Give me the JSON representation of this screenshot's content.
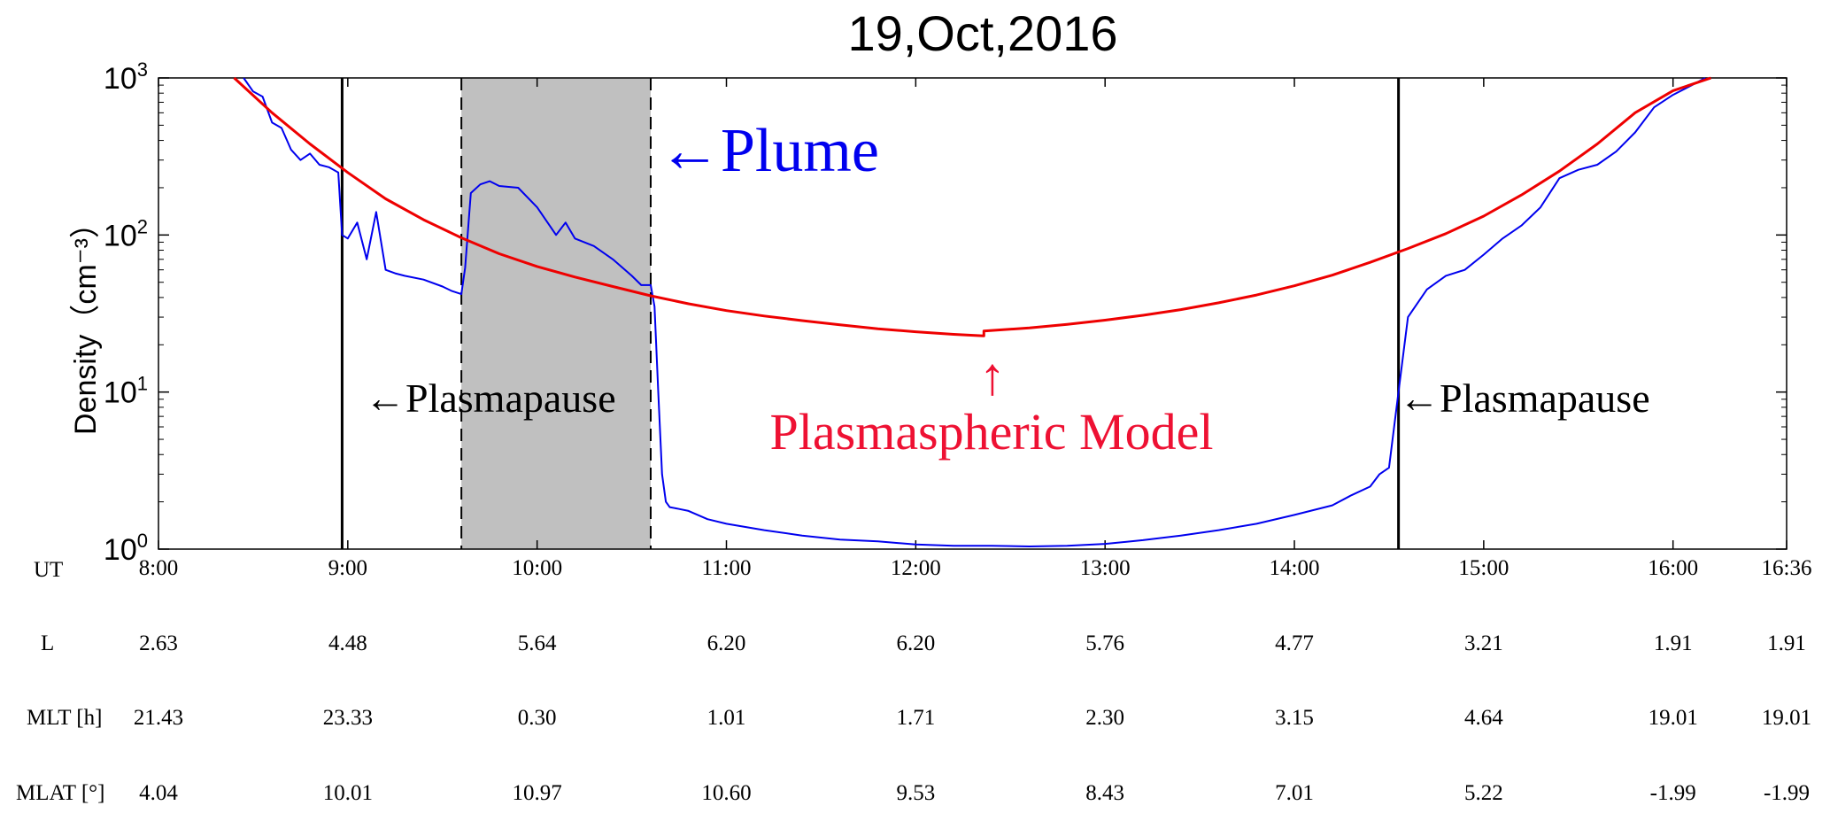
{
  "chart_data": {
    "type": "line",
    "title": "19,Oct,2016",
    "ylabel": "Density（cm⁻³）",
    "y_scale": "log",
    "ylim": [
      1,
      1000
    ],
    "y_ticks": [
      {
        "value": 1,
        "base": "10",
        "exp": "0"
      },
      {
        "value": 10,
        "base": "10",
        "exp": "1"
      },
      {
        "value": 100,
        "base": "10",
        "exp": "2"
      },
      {
        "value": 1000,
        "base": "10",
        "exp": "3"
      }
    ],
    "x_ticks": [
      {
        "t": 8.0,
        "label": "8:00"
      },
      {
        "t": 9.0,
        "label": "9:00"
      },
      {
        "t": 10.0,
        "label": "10:00"
      },
      {
        "t": 11.0,
        "label": "11:00"
      },
      {
        "t": 12.0,
        "label": "12:00"
      },
      {
        "t": 13.0,
        "label": "13:00"
      },
      {
        "t": 14.0,
        "label": "14:00"
      },
      {
        "t": 15.0,
        "label": "15:00"
      },
      {
        "t": 16.0,
        "label": "16:00"
      },
      {
        "t": 16.6,
        "label": "16:36"
      }
    ],
    "xlim_hours": [
      8.0,
      16.6
    ],
    "colors": {
      "measured": "#0000ee",
      "model": "#ee0000",
      "plume_shade": "#c0c0c0",
      "axis": "#000000"
    },
    "series": [
      {
        "key": "measured",
        "x_hours": [
          8.45,
          8.5,
          8.55,
          8.6,
          8.65,
          8.7,
          8.75,
          8.8,
          8.85,
          8.9,
          8.95,
          8.97,
          9.0,
          9.05,
          9.1,
          9.15,
          9.2,
          9.25,
          9.3,
          9.4,
          9.5,
          9.55,
          9.6,
          9.62,
          9.65,
          9.7,
          9.75,
          9.8,
          9.9,
          10.0,
          10.1,
          10.15,
          10.2,
          10.3,
          10.4,
          10.5,
          10.55,
          10.6,
          10.62,
          10.64,
          10.66,
          10.68,
          10.7,
          10.75,
          10.8,
          10.9,
          11.0,
          11.2,
          11.4,
          11.6,
          11.8,
          12.0,
          12.2,
          12.4,
          12.6,
          12.8,
          13.0,
          13.2,
          13.4,
          13.6,
          13.8,
          14.0,
          14.2,
          14.3,
          14.4,
          14.45,
          14.5,
          14.55,
          14.6,
          14.7,
          14.8,
          14.9,
          15.0,
          15.1,
          15.2,
          15.3,
          15.4,
          15.5,
          15.6,
          15.7,
          15.8,
          15.9,
          16.0,
          16.1,
          16.17
        ],
        "values": [
          1000,
          820,
          760,
          520,
          480,
          350,
          300,
          330,
          280,
          270,
          250,
          100,
          95,
          120,
          70,
          140,
          60,
          57,
          55,
          52,
          47,
          44,
          42,
          62,
          185,
          210,
          220,
          205,
          200,
          150,
          100,
          120,
          95,
          85,
          70,
          55,
          48,
          48,
          35,
          10,
          3,
          2,
          1.85,
          1.8,
          1.75,
          1.55,
          1.45,
          1.32,
          1.22,
          1.15,
          1.12,
          1.07,
          1.05,
          1.05,
          1.04,
          1.05,
          1.08,
          1.14,
          1.22,
          1.32,
          1.45,
          1.65,
          1.9,
          2.2,
          2.5,
          3.0,
          3.3,
          10,
          30,
          45,
          55,
          60,
          75,
          95,
          115,
          150,
          230,
          260,
          280,
          340,
          450,
          650,
          780,
          900,
          1000
        ]
      },
      {
        "key": "model",
        "x_hours": [
          8.4,
          8.6,
          8.8,
          9.0,
          9.2,
          9.4,
          9.6,
          9.8,
          10.0,
          10.2,
          10.4,
          10.6,
          10.8,
          11.0,
          11.2,
          11.4,
          11.6,
          11.8,
          12.0,
          12.2,
          12.36,
          12.36,
          12.6,
          12.8,
          13.0,
          13.2,
          13.4,
          13.6,
          13.8,
          14.0,
          14.2,
          14.4,
          14.6,
          14.8,
          15.0,
          15.2,
          15.4,
          15.6,
          15.8,
          16.0,
          16.2
        ],
        "values": [
          1000,
          600,
          380,
          250,
          170,
          125,
          96,
          76,
          63,
          54,
          47,
          41,
          36.5,
          33,
          30.5,
          28.5,
          26.8,
          25.3,
          24.2,
          23.3,
          22.8,
          24.5,
          25.6,
          27,
          28.7,
          30.8,
          33.5,
          37,
          41.5,
          47.5,
          55.5,
          67,
          82,
          102,
          132,
          180,
          255,
          380,
          600,
          830,
          1000
        ]
      }
    ],
    "plume_interval_hours": [
      9.6,
      10.6
    ],
    "plasmapause_hours": [
      8.97,
      14.55
    ],
    "annotations": {
      "plume": "←Plume",
      "plasmapause_left": "←Plasmapause",
      "plasmapause_right": "←Plasmapause",
      "model_label": "Plasmaspheric Model",
      "model_arrow": "↑"
    },
    "table": {
      "row_labels": [
        "UT",
        "L",
        "MLT [h]",
        "MLAT [°]"
      ],
      "L": [
        "2.63",
        "4.48",
        "5.64",
        "6.20",
        "6.20",
        "5.76",
        "4.77",
        "3.21",
        "1.91",
        "1.91"
      ],
      "MLT": [
        "21.43",
        "23.33",
        "0.30",
        "1.01",
        "1.71",
        "2.30",
        "3.15",
        "4.64",
        "19.01",
        "19.01"
      ],
      "MLAT": [
        "4.04",
        "10.01",
        "10.97",
        "10.60",
        "9.53",
        "8.43",
        "7.01",
        "5.22",
        "-1.99",
        "-1.99"
      ]
    }
  }
}
